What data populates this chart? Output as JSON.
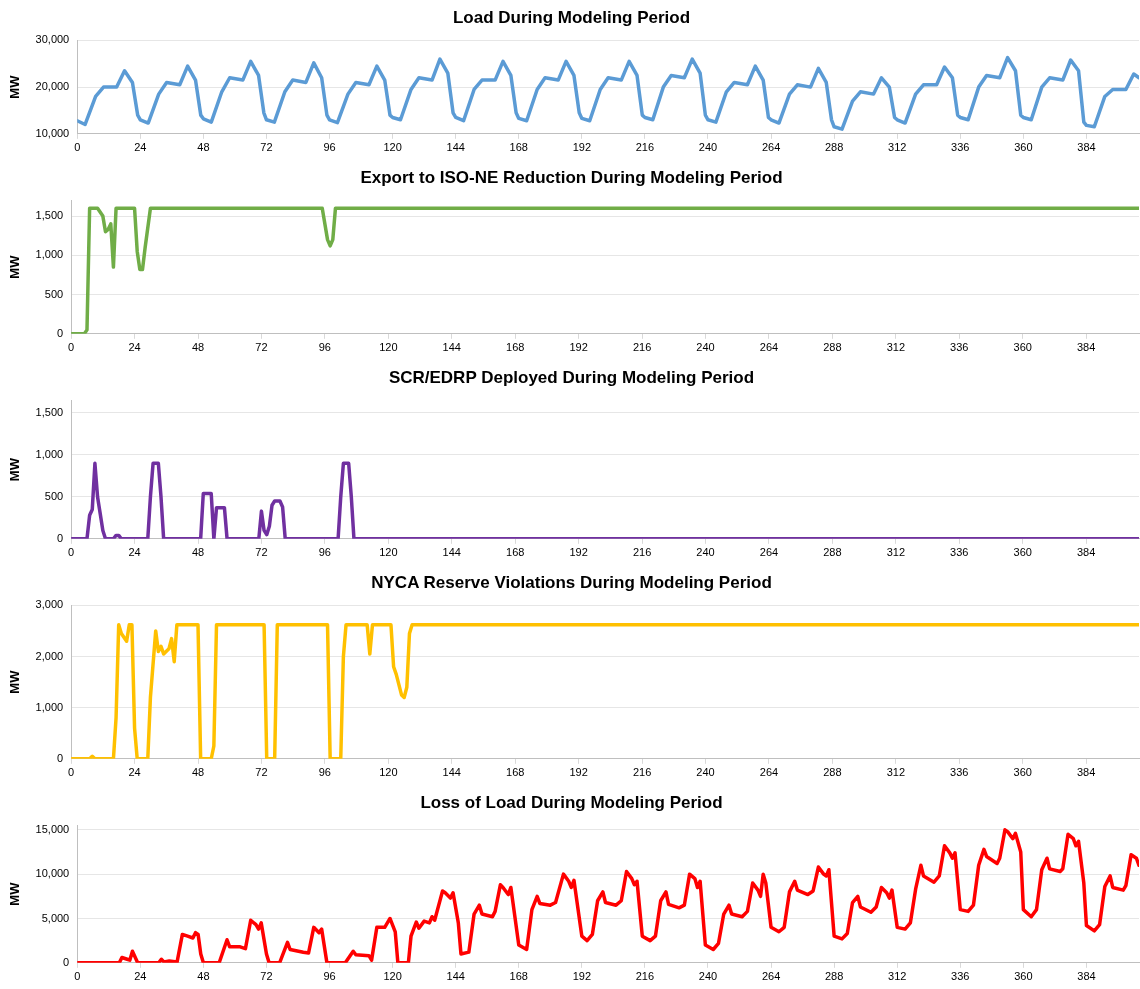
{
  "chart_data": [
    {
      "type": "line",
      "title": "Load During Modeling Period",
      "ylabel": "MW",
      "color": "#5b9bd5",
      "marker": "none",
      "grid": "y",
      "x": [
        0,
        3,
        7,
        10,
        15,
        18,
        21,
        23,
        24,
        27,
        31,
        34,
        39,
        42,
        45,
        47,
        48,
        51,
        55,
        58,
        63,
        66,
        69,
        71,
        72,
        75,
        79,
        82,
        87,
        90,
        93,
        95,
        96,
        99,
        103,
        106,
        111,
        114,
        117,
        119,
        120,
        123,
        127,
        130,
        135,
        138,
        141,
        143,
        144,
        147,
        151,
        154,
        159,
        162,
        165,
        167,
        168,
        171,
        175,
        178,
        183,
        186,
        189,
        191,
        192,
        195,
        199,
        202,
        207,
        210,
        213,
        215,
        216,
        219,
        223,
        226,
        231,
        234,
        237,
        239,
        240,
        243,
        247,
        250,
        255,
        258,
        261,
        263,
        264,
        267,
        271,
        274,
        279,
        282,
        285,
        287,
        288,
        291,
        295,
        298,
        303,
        306,
        309,
        311,
        312,
        315,
        319,
        322,
        327,
        330,
        333,
        335,
        336,
        339,
        343,
        346,
        351,
        354,
        357,
        359,
        360,
        363,
        367,
        370,
        375,
        378,
        381,
        383,
        384,
        387,
        391,
        394,
        399,
        402,
        404
      ],
      "values": [
        12800,
        12000,
        18000,
        20000,
        20000,
        23500,
        21000,
        14000,
        13000,
        12300,
        18500,
        21000,
        20500,
        24500,
        21500,
        14000,
        13200,
        12500,
        19000,
        22000,
        21500,
        25500,
        22500,
        14500,
        13000,
        12500,
        19000,
        21500,
        21000,
        25200,
        22000,
        14000,
        13000,
        12400,
        18500,
        21000,
        20500,
        24500,
        21500,
        14000,
        13500,
        13000,
        19500,
        22000,
        21500,
        26000,
        23000,
        14500,
        13500,
        12800,
        19500,
        21500,
        21500,
        25500,
        22500,
        14500,
        13300,
        12800,
        19500,
        22000,
        21500,
        25500,
        22500,
        14500,
        13300,
        12800,
        19500,
        22000,
        21500,
        25500,
        22500,
        14000,
        13500,
        13000,
        20000,
        22500,
        22000,
        26000,
        23000,
        14000,
        13000,
        12500,
        19000,
        21000,
        20500,
        24500,
        21500,
        13500,
        13000,
        12300,
        18500,
        20500,
        20000,
        24000,
        21000,
        13000,
        11500,
        11000,
        17000,
        19000,
        18500,
        22000,
        20000,
        13500,
        13000,
        12300,
        18500,
        20500,
        20500,
        24300,
        22000,
        14000,
        13500,
        13000,
        20000,
        22500,
        22000,
        26300,
        23500,
        14000,
        13500,
        13000,
        20000,
        22000,
        21500,
        25800,
        23500,
        12500,
        11800,
        11500,
        18000,
        19500,
        19500,
        22800,
        22000
      ],
      "xlim": [
        0,
        404
      ],
      "xticks": [
        0,
        24,
        48,
        72,
        96,
        120,
        144,
        168,
        192,
        216,
        240,
        264,
        288,
        312,
        336,
        360,
        384
      ],
      "ylim": [
        10000,
        30000
      ],
      "yticks": [
        {
          "value": 10000,
          "label": "10,000"
        },
        {
          "value": 20000,
          "label": "20,000"
        },
        {
          "value": 30000,
          "label": "30,000"
        }
      ]
    },
    {
      "type": "line",
      "title": "Export to ISO-NE Reduction During Modeling Period",
      "ylabel": "MW",
      "color": "#70ad47",
      "marker": "none",
      "grid": "y",
      "x": [
        0,
        5,
        6,
        7,
        10,
        12,
        13,
        14,
        15,
        16,
        17,
        24,
        25,
        26,
        27,
        28,
        30,
        95,
        97,
        98,
        99,
        100,
        404
      ],
      "values": [
        0,
        0,
        50,
        1600,
        1600,
        1500,
        1300,
        1330,
        1400,
        850,
        1600,
        1600,
        1050,
        820,
        820,
        1100,
        1600,
        1600,
        1200,
        1120,
        1200,
        1600,
        1600
      ],
      "xlim": [
        0,
        404
      ],
      "xticks": [
        0,
        24,
        48,
        72,
        96,
        120,
        144,
        168,
        192,
        216,
        240,
        264,
        288,
        312,
        336,
        360,
        384
      ],
      "ylim": [
        0,
        1700
      ],
      "yticks": [
        {
          "value": 0,
          "label": "0"
        },
        500,
        {
          "value": 1000,
          "label": "1,000"
        },
        {
          "value": 1500,
          "label": "1,500"
        }
      ]
    },
    {
      "type": "line",
      "title": "SCR/EDRP Deployed During Modeling Period",
      "ylabel": "MW",
      "color": "#7030a0",
      "marker": "none",
      "grid": "y",
      "x": [
        0,
        6,
        7,
        8,
        9,
        10,
        11,
        12,
        13,
        16,
        17,
        18,
        19,
        29,
        30,
        31,
        33,
        34,
        35,
        49,
        50,
        53,
        54,
        55,
        58,
        59,
        71,
        72,
        73,
        74,
        75,
        76,
        77,
        79,
        80,
        81,
        101,
        102,
        103,
        105,
        106,
        107,
        404
      ],
      "values": [
        0,
        0,
        280,
        350,
        900,
        500,
        300,
        100,
        0,
        0,
        40,
        40,
        0,
        0,
        500,
        900,
        900,
        500,
        0,
        0,
        540,
        540,
        0,
        370,
        370,
        0,
        0,
        330,
        100,
        50,
        150,
        400,
        450,
        450,
        380,
        0,
        0,
        500,
        900,
        900,
        500,
        0,
        0
      ],
      "xlim": [
        0,
        404
      ],
      "xticks": [
        0,
        24,
        48,
        72,
        96,
        120,
        144,
        168,
        192,
        216,
        240,
        264,
        288,
        312,
        336,
        360,
        384
      ],
      "ylim": [
        0,
        1650
      ],
      "yticks": [
        {
          "value": 0,
          "label": "0"
        },
        500,
        {
          "value": 1000,
          "label": "1,000"
        },
        {
          "value": 1500,
          "label": "1,500"
        }
      ]
    },
    {
      "type": "line",
      "title": "NYCA Reserve Violations During Modeling Period",
      "ylabel": "MW",
      "color": "#ffc000",
      "marker": "none",
      "grid": "y",
      "x": [
        0,
        7,
        8,
        9,
        16,
        17,
        18,
        19,
        21,
        22,
        23,
        24,
        25,
        29,
        30,
        32,
        33,
        34,
        35,
        37,
        38,
        39,
        40,
        48,
        49,
        53,
        54,
        55,
        73,
        74,
        77,
        78,
        97,
        98,
        102,
        103,
        104,
        112,
        113,
        114,
        121,
        122,
        123,
        125,
        126,
        127,
        128,
        129,
        404
      ],
      "values": [
        0,
        0,
        50,
        0,
        0,
        800,
        2620,
        2450,
        2300,
        2620,
        2620,
        600,
        0,
        0,
        1200,
        2500,
        2100,
        2200,
        2050,
        2150,
        2350,
        1900,
        2620,
        2620,
        0,
        0,
        250,
        2620,
        2620,
        0,
        0,
        2620,
        2620,
        0,
        0,
        2000,
        2620,
        2620,
        2050,
        2620,
        2620,
        1800,
        1650,
        1250,
        1200,
        1400,
        2450,
        2620,
        2620
      ],
      "xlim": [
        0,
        404
      ],
      "xticks": [
        0,
        24,
        48,
        72,
        96,
        120,
        144,
        168,
        192,
        216,
        240,
        264,
        288,
        312,
        336,
        360,
        384
      ],
      "ylim": [
        0,
        3000
      ],
      "yticks": [
        {
          "value": 0,
          "label": "0"
        },
        {
          "value": 1000,
          "label": "1,000"
        },
        {
          "value": 2000,
          "label": "2,000"
        },
        {
          "value": 3000,
          "label": "3,000"
        }
      ]
    },
    {
      "type": "line",
      "title": "Loss of Load During Modeling Period",
      "ylabel": "MW",
      "color": "#ff0000",
      "marker": "none",
      "grid": "y",
      "x": [
        0,
        16,
        17,
        19,
        20,
        21,
        23,
        31,
        32,
        33,
        35,
        38,
        40,
        42,
        44,
        45,
        46,
        47,
        48,
        54,
        57,
        58,
        62,
        64,
        66,
        68,
        69,
        70,
        72,
        73,
        77,
        80,
        81,
        86,
        88,
        90,
        92,
        93,
        95,
        102,
        105,
        106,
        111,
        112,
        114,
        117,
        119,
        121,
        122,
        126,
        127,
        129,
        130,
        132,
        134,
        135,
        136,
        139,
        140,
        142,
        143,
        145,
        146,
        149,
        151,
        153,
        154,
        158,
        159,
        161,
        162,
        164,
        165,
        168,
        171,
        173,
        175,
        176,
        180,
        182,
        185,
        187,
        188,
        189,
        192,
        194,
        196,
        198,
        200,
        201,
        205,
        207,
        209,
        211,
        212,
        213,
        215,
        218,
        220,
        222,
        224,
        225,
        229,
        231,
        233,
        235,
        236,
        237,
        239,
        242,
        244,
        246,
        248,
        249,
        253,
        255,
        257,
        259,
        260,
        261,
        262,
        264,
        267,
        269,
        271,
        273,
        274,
        278,
        280,
        282,
        284,
        285,
        286,
        288,
        291,
        293,
        295,
        297,
        298,
        302,
        304,
        306,
        308,
        309,
        310,
        312,
        315,
        317,
        319,
        321,
        322,
        326,
        328,
        330,
        332,
        333,
        334,
        336,
        339,
        341,
        343,
        345,
        346,
        350,
        351,
        353,
        354,
        356,
        357,
        359,
        360,
        363,
        365,
        367,
        369,
        370,
        374,
        375,
        377,
        379,
        380,
        381,
        383,
        384,
        387,
        389,
        391,
        393,
        394,
        398,
        399,
        401,
        403,
        404
      ],
      "values": [
        0,
        0,
        600,
        400,
        300,
        1300,
        0,
        0,
        400,
        100,
        200,
        100,
        3200,
        3000,
        2800,
        3400,
        3200,
        1000,
        0,
        0,
        2600,
        1800,
        1800,
        1600,
        4800,
        4300,
        3800,
        4500,
        1000,
        0,
        0,
        2300,
        1500,
        1200,
        1100,
        4000,
        3400,
        3800,
        0,
        0,
        1300,
        900,
        800,
        300,
        4000,
        4000,
        5000,
        3500,
        0,
        0,
        3000,
        4600,
        3900,
        4700,
        4500,
        5200,
        4800,
        8100,
        7900,
        7300,
        7900,
        4500,
        1000,
        1200,
        5500,
        6500,
        5500,
        5200,
        5800,
        8800,
        8500,
        7700,
        8500,
        2000,
        1500,
        6000,
        7500,
        6700,
        6500,
        6800,
        10000,
        9200,
        8500,
        9300,
        3000,
        2500,
        3200,
        7000,
        8000,
        6800,
        6500,
        7000,
        10300,
        9500,
        8800,
        9200,
        3000,
        2500,
        3000,
        7000,
        8000,
        6600,
        6200,
        6500,
        10000,
        9500,
        8500,
        9200,
        2000,
        1500,
        2200,
        5500,
        6500,
        5500,
        5200,
        5800,
        9000,
        8200,
        7500,
        10000,
        9000,
        4000,
        3500,
        4000,
        8000,
        9200,
        8200,
        7700,
        8100,
        10800,
        10000,
        9800,
        10500,
        3000,
        2700,
        3300,
        6800,
        7500,
        6300,
        5700,
        6300,
        8500,
        7900,
        7300,
        8200,
        4000,
        3800,
        4500,
        8300,
        11000,
        9800,
        9100,
        9800,
        13200,
        12400,
        11800,
        12400,
        6000,
        5800,
        6500,
        11000,
        12800,
        12000,
        11200,
        11800,
        15000,
        14800,
        14000,
        14600,
        12500,
        6000,
        5200,
        6000,
        10500,
        11800,
        10600,
        10300,
        10600,
        14500,
        14000,
        13200,
        13700,
        9000,
        4200,
        3600,
        4300,
        8600,
        9800,
        8500,
        8200,
        8700,
        12200,
        11800,
        11000
      ],
      "xlim": [
        0,
        404
      ],
      "xticks": [
        0,
        24,
        48,
        72,
        96,
        120,
        144,
        168,
        192,
        216,
        240,
        264,
        288,
        312,
        336,
        360,
        384
      ],
      "ylim": [
        0,
        15500
      ],
      "yticks": [
        {
          "value": 0,
          "label": "0"
        },
        {
          "value": 5000,
          "label": "5,000"
        },
        {
          "value": 10000,
          "label": "10,000"
        },
        {
          "value": 15000,
          "label": "15,000"
        }
      ]
    }
  ]
}
